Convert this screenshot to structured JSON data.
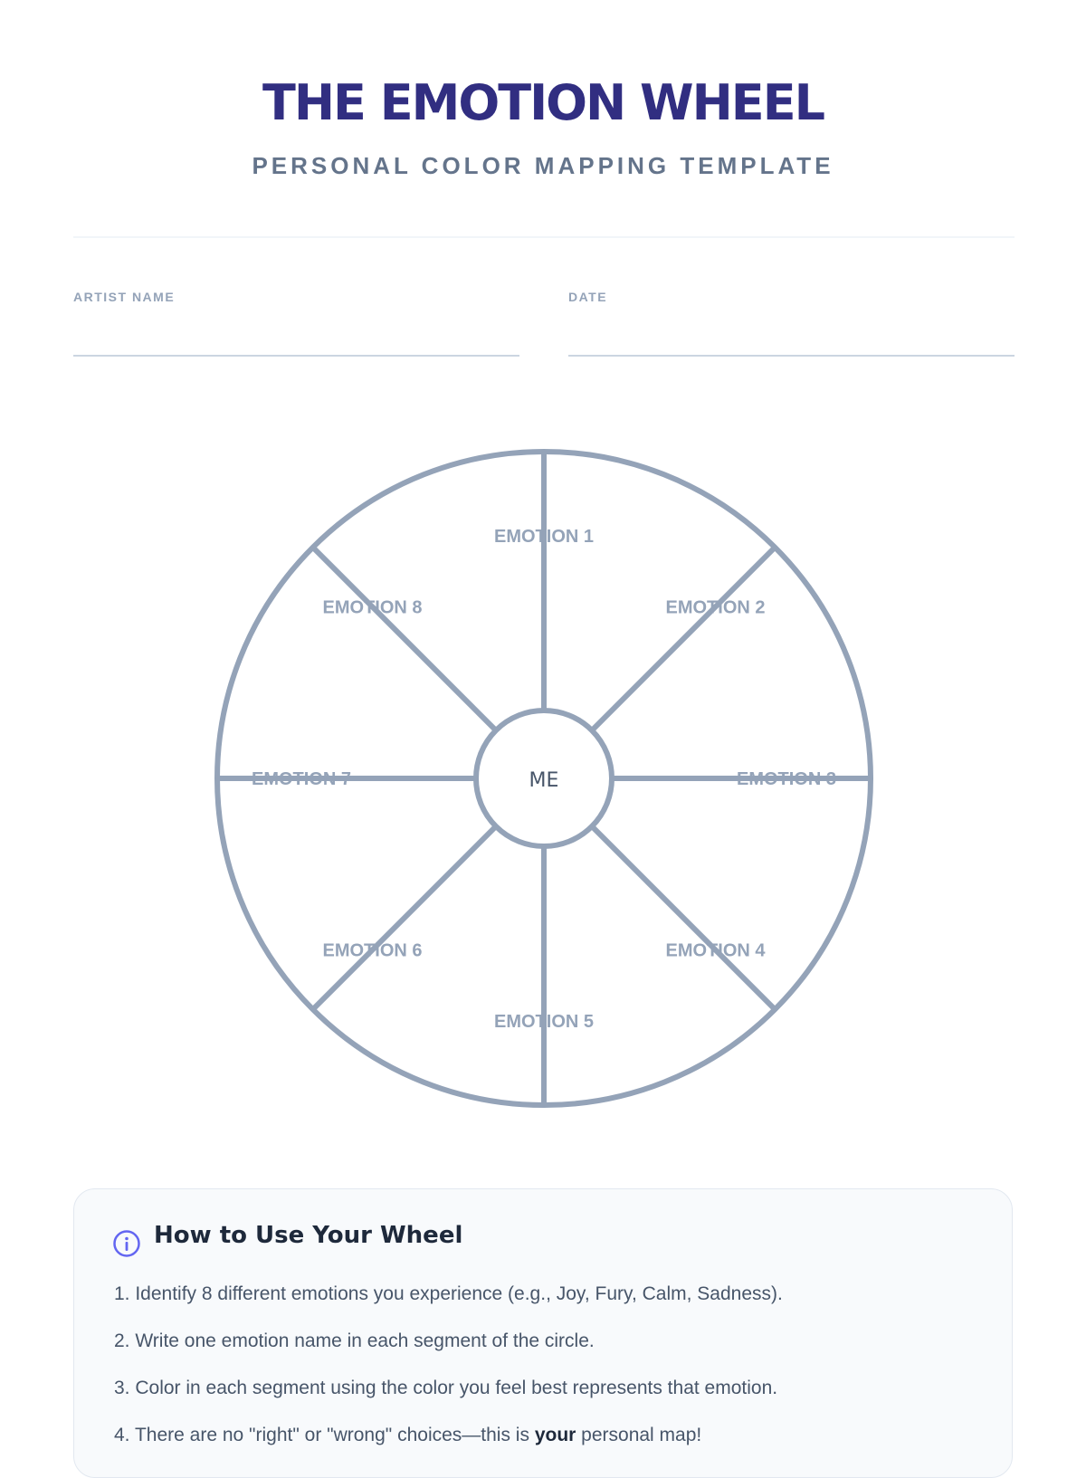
{
  "header": {
    "title": "THE EMOTION WHEEL",
    "subtitle": "PERSONAL COLOR MAPPING TEMPLATE"
  },
  "fields": {
    "artist_name_label": "ARTIST NAME",
    "artist_name_value": "",
    "date_label": "DATE",
    "date_value": ""
  },
  "wheel": {
    "center_label": "ME",
    "segments": [
      "EMOTION 1",
      "EMOTION 2",
      "EMOTION 3",
      "EMOTION 4",
      "EMOTION 5",
      "EMOTION 6",
      "EMOTION 7",
      "EMOTION 8"
    ],
    "stroke_color": "#94a3b8"
  },
  "instructions": {
    "icon": "info-icon",
    "title": "How to Use Your Wheel",
    "steps": [
      {
        "text": "1. Identify 8 different emotions you experience (e.g., Joy, Fury, Calm, Sadness)."
      },
      {
        "text": "2. Write one emotion name in each segment of the circle."
      },
      {
        "text": "3. Color in each segment using the color you feel best represents that emotion."
      },
      {
        "pre": "4. There are no \"right\" or \"wrong\" choices—this is ",
        "bold": "your",
        "post": " personal map!"
      }
    ]
  },
  "colors": {
    "title": "#312e81",
    "accent": "#6366f1",
    "muted": "#94a3b8"
  }
}
